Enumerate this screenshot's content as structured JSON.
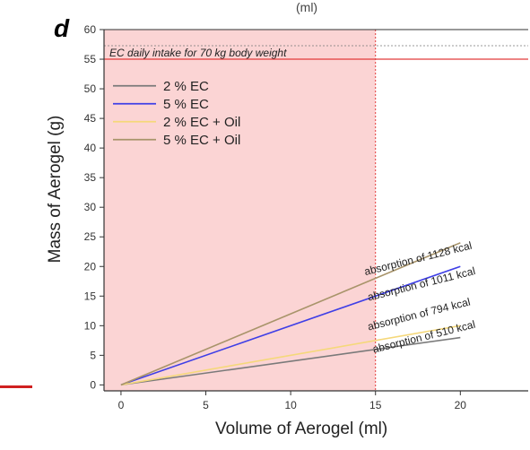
{
  "panel_label": "d",
  "top_clipped_text": "(ml)",
  "colors": {
    "shade": "#f9c6c6",
    "limit_line": "#e23b3b",
    "series": [
      "#7a7a7a",
      "#3f3fe6",
      "#f5d87a",
      "#a8946a"
    ]
  },
  "chart_data": {
    "type": "line",
    "xlabel": "Volume of Aerogel (ml)",
    "ylabel": "Mass of Aerogel (g)",
    "xlim": [
      -1,
      24
    ],
    "ylim": [
      -1,
      60
    ],
    "xticks": [
      0,
      5,
      10,
      15,
      20
    ],
    "yticks": [
      0,
      5,
      10,
      15,
      20,
      25,
      30,
      35,
      40,
      45,
      50,
      55,
      60
    ],
    "shaded_region": {
      "x_from": -1,
      "x_to": 15
    },
    "vertical_marker_x": 15,
    "horizontal_limit": {
      "y": 55,
      "label": "EC daily intake for 70 kg body weight"
    },
    "legend_placement": "top-left",
    "series": [
      {
        "name": "2 % EC",
        "x": [
          0,
          20
        ],
        "y": [
          0,
          8
        ]
      },
      {
        "name": "5 % EC",
        "x": [
          0,
          20
        ],
        "y": [
          0,
          20
        ]
      },
      {
        "name": "2 % EC + Oil",
        "x": [
          0,
          20
        ],
        "y": [
          0,
          10
        ]
      },
      {
        "name": "5 % EC + Oil",
        "x": [
          0,
          20
        ],
        "y": [
          0,
          24
        ]
      }
    ],
    "annotations": [
      {
        "text": "absorption of 1128 kcal",
        "x": 14.4,
        "y": 18.5
      },
      {
        "text": "absorption of 1011 kcal",
        "x": 14.6,
        "y": 14.2
      },
      {
        "text": "absorption of 794 kcal",
        "x": 14.6,
        "y": 9.2
      },
      {
        "text": "absorption of 510 kcal",
        "x": 14.9,
        "y": 5.4
      }
    ]
  }
}
